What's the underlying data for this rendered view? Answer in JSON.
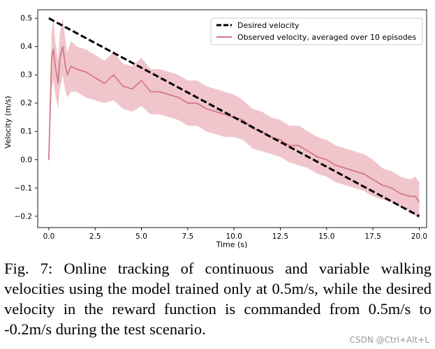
{
  "chart_data": {
    "type": "line",
    "title": "",
    "xlabel": "Time (s)",
    "ylabel": "Velocity (m/s)",
    "xlim": [
      -0.6,
      20.4
    ],
    "ylim": [
      -0.24,
      0.53
    ],
    "xticks": [
      0.0,
      2.5,
      5.0,
      7.5,
      10.0,
      12.5,
      15.0,
      17.5,
      20.0
    ],
    "xtick_labels": [
      "0.0",
      "2.5",
      "5.0",
      "7.5",
      "10.0",
      "12.5",
      "15.0",
      "17.5",
      "20.0"
    ],
    "yticks": [
      -0.2,
      -0.1,
      0.0,
      0.1,
      0.2,
      0.3,
      0.4,
      0.5
    ],
    "ytick_labels": [
      "−0.2",
      "−0.1",
      "0.0",
      "0.1",
      "0.2",
      "0.3",
      "0.4",
      "0.5"
    ],
    "grid": false,
    "legend_position": "top-right",
    "series": [
      {
        "name": "Desired velocity",
        "style": "dashed",
        "color": "#000000",
        "x": [
          0.0,
          20.0
        ],
        "y": [
          0.5,
          -0.2
        ]
      },
      {
        "name": "Observed velocity, averaged over 10 episodes",
        "style": "solid",
        "color": "#d47886",
        "band_color": "#f0c6cc",
        "x": [
          0.0,
          0.15,
          0.25,
          0.35,
          0.5,
          0.6,
          0.75,
          0.9,
          1.0,
          1.2,
          1.5,
          2.0,
          2.5,
          3.0,
          3.5,
          4.0,
          4.5,
          5.0,
          5.5,
          6.0,
          6.5,
          7.0,
          7.5,
          8.0,
          8.5,
          9.0,
          9.5,
          10.0,
          10.5,
          11.0,
          11.5,
          12.0,
          12.5,
          13.0,
          13.5,
          14.0,
          14.5,
          15.0,
          15.5,
          16.0,
          16.5,
          17.0,
          17.5,
          18.0,
          18.5,
          19.0,
          19.5,
          19.8,
          20.0
        ],
        "y": [
          0.0,
          0.36,
          0.39,
          0.33,
          0.27,
          0.36,
          0.4,
          0.33,
          0.3,
          0.33,
          0.32,
          0.31,
          0.29,
          0.27,
          0.3,
          0.26,
          0.25,
          0.28,
          0.24,
          0.24,
          0.23,
          0.22,
          0.2,
          0.2,
          0.18,
          0.17,
          0.16,
          0.15,
          0.14,
          0.11,
          0.1,
          0.08,
          0.07,
          0.05,
          0.05,
          0.03,
          0.01,
          0.0,
          -0.02,
          -0.03,
          -0.04,
          -0.05,
          -0.07,
          -0.09,
          -0.1,
          -0.12,
          -0.13,
          -0.13,
          -0.15
        ],
        "lower": [
          -0.03,
          0.25,
          0.28,
          0.23,
          0.18,
          0.25,
          0.3,
          0.24,
          0.22,
          0.24,
          0.24,
          0.22,
          0.21,
          0.2,
          0.21,
          0.18,
          0.17,
          0.19,
          0.16,
          0.16,
          0.15,
          0.14,
          0.12,
          0.12,
          0.1,
          0.09,
          0.08,
          0.08,
          0.07,
          0.04,
          0.03,
          0.02,
          0.01,
          -0.01,
          -0.02,
          -0.03,
          -0.05,
          -0.06,
          -0.08,
          -0.09,
          -0.1,
          -0.11,
          -0.13,
          -0.14,
          -0.15,
          -0.17,
          -0.18,
          -0.2,
          -0.21
        ],
        "upper": [
          0.03,
          0.45,
          0.5,
          0.42,
          0.35,
          0.45,
          0.5,
          0.42,
          0.38,
          0.42,
          0.4,
          0.39,
          0.37,
          0.35,
          0.38,
          0.34,
          0.33,
          0.36,
          0.32,
          0.32,
          0.31,
          0.3,
          0.28,
          0.28,
          0.26,
          0.25,
          0.24,
          0.23,
          0.21,
          0.18,
          0.17,
          0.15,
          0.14,
          0.12,
          0.12,
          0.1,
          0.08,
          0.07,
          0.05,
          0.04,
          0.03,
          0.02,
          0.0,
          -0.03,
          -0.04,
          -0.06,
          -0.07,
          -0.06,
          -0.08
        ]
      }
    ]
  },
  "caption": {
    "text": "Fig. 7: Online tracking of continuous and variable walking velocities using the model trained only at 0.5m/s, while the desired velocity in the reward function is commanded from 0.5m/s to -0.2m/s during the test scenario."
  },
  "watermark": "CSDN @Ctrl+Alt+L"
}
